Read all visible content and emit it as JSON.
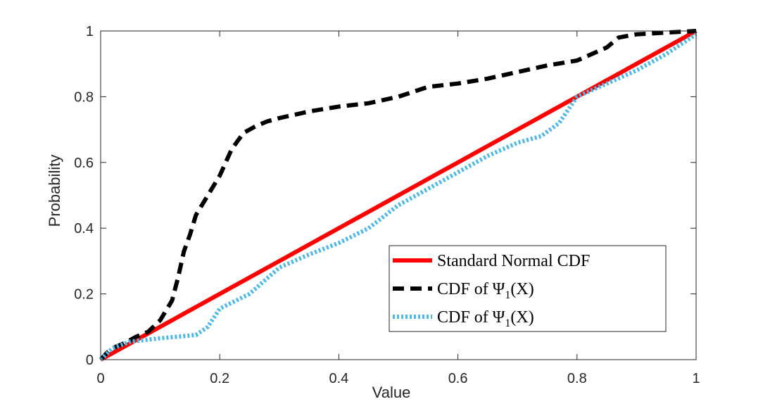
{
  "chart_data": {
    "type": "line",
    "title": "",
    "xlabel": "Value",
    "ylabel": "Probability",
    "xlim": [
      0,
      1
    ],
    "ylim": [
      0,
      1
    ],
    "xticks": [
      0,
      0.2,
      0.4,
      0.6,
      0.8,
      1
    ],
    "yticks": [
      0,
      0.2,
      0.4,
      0.6,
      0.8,
      1
    ],
    "xtick_labels": [
      "0",
      "0.2",
      "0.4",
      "0.6",
      "0.8",
      "1"
    ],
    "ytick_labels": [
      "0",
      "0.2",
      "0.4",
      "0.6",
      "0.8",
      "1"
    ],
    "grid": false,
    "legend_position": "bottom-right",
    "series": [
      {
        "name": "Standard Normal CDF",
        "label_main": "Standard Normal CDF",
        "label_sub": "",
        "label_tail": "",
        "color": "#ff0000",
        "style": "solid",
        "points": [
          [
            0,
            0
          ],
          [
            1,
            1
          ]
        ]
      },
      {
        "name": "CDF of Ψ1(X)",
        "label_main": "CDF of Ψ",
        "label_sub": "1",
        "label_tail": "(X)",
        "color": "#000000",
        "style": "dashed",
        "points": [
          [
            0,
            0
          ],
          [
            0.01,
            0.02
          ],
          [
            0.02,
            0.035
          ],
          [
            0.04,
            0.05
          ],
          [
            0.06,
            0.07
          ],
          [
            0.08,
            0.085
          ],
          [
            0.1,
            0.12
          ],
          [
            0.12,
            0.18
          ],
          [
            0.13,
            0.25
          ],
          [
            0.14,
            0.33
          ],
          [
            0.15,
            0.38
          ],
          [
            0.16,
            0.44
          ],
          [
            0.18,
            0.5
          ],
          [
            0.2,
            0.56
          ],
          [
            0.22,
            0.64
          ],
          [
            0.24,
            0.69
          ],
          [
            0.26,
            0.71
          ],
          [
            0.28,
            0.725
          ],
          [
            0.3,
            0.735
          ],
          [
            0.35,
            0.755
          ],
          [
            0.4,
            0.77
          ],
          [
            0.45,
            0.78
          ],
          [
            0.5,
            0.8
          ],
          [
            0.55,
            0.83
          ],
          [
            0.6,
            0.84
          ],
          [
            0.65,
            0.855
          ],
          [
            0.7,
            0.875
          ],
          [
            0.75,
            0.895
          ],
          [
            0.8,
            0.91
          ],
          [
            0.85,
            0.95
          ],
          [
            0.87,
            0.98
          ],
          [
            0.9,
            0.99
          ],
          [
            0.95,
            0.995
          ],
          [
            1,
            1
          ]
        ]
      },
      {
        "name": "CDF of Ψ1(X)",
        "label_main": "CDF of Ψ",
        "label_sub": "1",
        "label_tail": "(X)",
        "color": "#4db8e8",
        "style": "dotted",
        "points": [
          [
            0,
            0
          ],
          [
            0.02,
            0.035
          ],
          [
            0.05,
            0.055
          ],
          [
            0.1,
            0.065
          ],
          [
            0.13,
            0.07
          ],
          [
            0.16,
            0.075
          ],
          [
            0.18,
            0.1
          ],
          [
            0.2,
            0.155
          ],
          [
            0.25,
            0.2
          ],
          [
            0.3,
            0.28
          ],
          [
            0.35,
            0.32
          ],
          [
            0.4,
            0.355
          ],
          [
            0.45,
            0.4
          ],
          [
            0.5,
            0.47
          ],
          [
            0.55,
            0.52
          ],
          [
            0.6,
            0.57
          ],
          [
            0.65,
            0.62
          ],
          [
            0.7,
            0.66
          ],
          [
            0.74,
            0.68
          ],
          [
            0.77,
            0.72
          ],
          [
            0.8,
            0.8
          ],
          [
            0.85,
            0.84
          ],
          [
            0.9,
            0.88
          ],
          [
            0.95,
            0.93
          ],
          [
            1,
            0.99
          ]
        ]
      }
    ]
  }
}
